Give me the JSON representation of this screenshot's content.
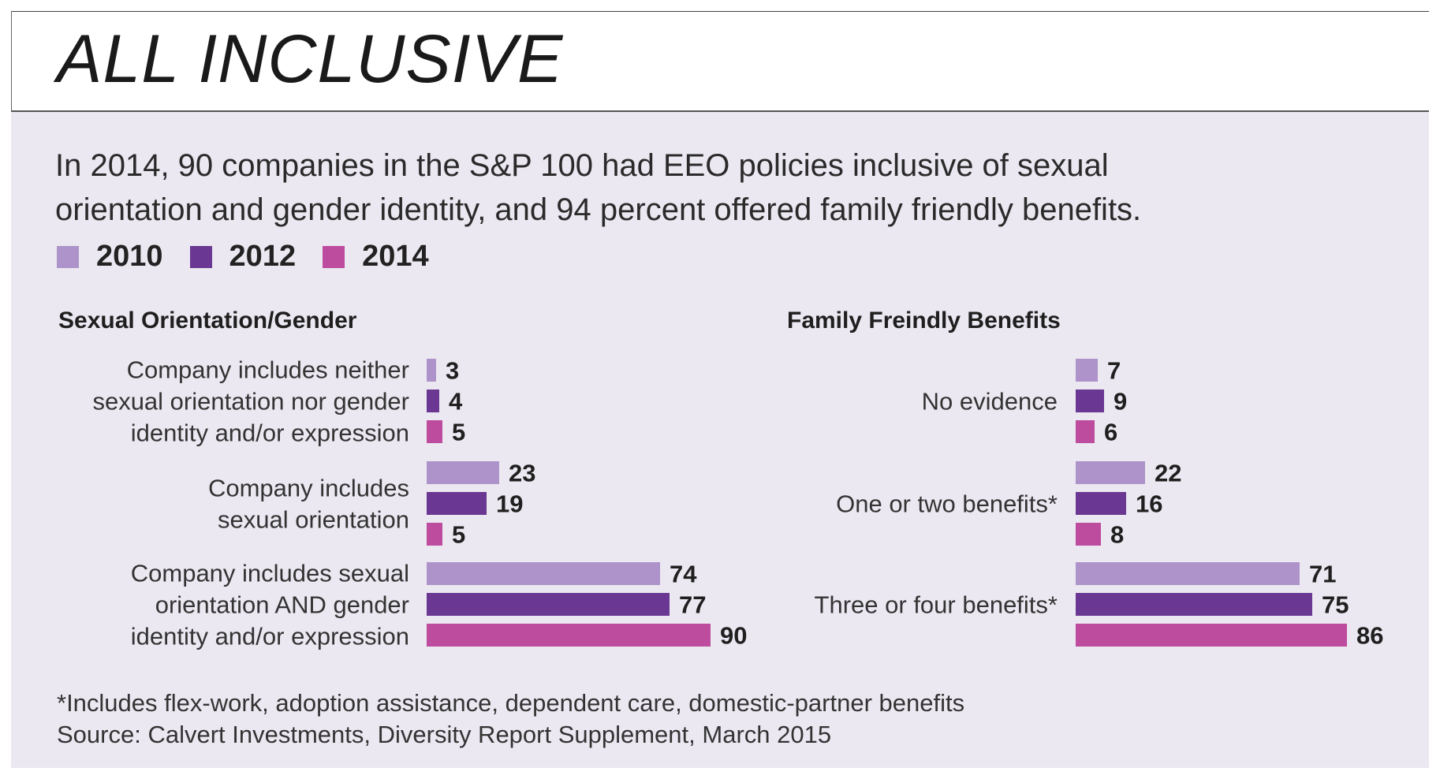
{
  "title": "ALL INCLUSIVE",
  "subtitle_line1": "In 2014, 90 companies in the S&P 100 had EEO policies inclusive of sexual",
  "subtitle_line2": "orientation and gender identity, and  94 percent offered family friendly benefits.",
  "legend": [
    {
      "label": "2010",
      "color": "#ad93c9"
    },
    {
      "label": "2012",
      "color": "#6a3793"
    },
    {
      "label": "2014",
      "color": "#bd4c9f"
    }
  ],
  "footnote": "*Includes flex-work, adoption assistance, dependent care, domestic-partner benefits",
  "source": "Source: Calvert Investments, Diversity Report Supplement, March 2015",
  "chart_data": [
    {
      "type": "bar",
      "orientation": "horizontal",
      "title": "Sexual Orientation/Gender",
      "categories": [
        [
          "Company includes neither",
          "sexual orientation nor gender",
          "identity and/or expression"
        ],
        [
          "Company includes",
          "sexual orientation"
        ],
        [
          "Company includes sexual",
          "orientation AND gender",
          "identity and/or expression"
        ]
      ],
      "series": [
        {
          "name": "2010",
          "values": [
            3,
            23,
            74
          ]
        },
        {
          "name": "2012",
          "values": [
            4,
            19,
            77
          ]
        },
        {
          "name": "2014",
          "values": [
            5,
            5,
            90
          ]
        }
      ],
      "xlim": [
        0,
        90
      ],
      "grid": false
    },
    {
      "type": "bar",
      "orientation": "horizontal",
      "title": "Family Freindly Benefits",
      "categories": [
        [
          "No evidence"
        ],
        [
          "One or two benefits*"
        ],
        [
          "Three or four benefits*"
        ]
      ],
      "series": [
        {
          "name": "2010",
          "values": [
            7,
            22,
            71
          ]
        },
        {
          "name": "2012",
          "values": [
            9,
            16,
            75
          ]
        },
        {
          "name": "2014",
          "values": [
            6,
            8,
            86
          ]
        }
      ],
      "xlim": [
        0,
        86
      ],
      "grid": false
    }
  ]
}
